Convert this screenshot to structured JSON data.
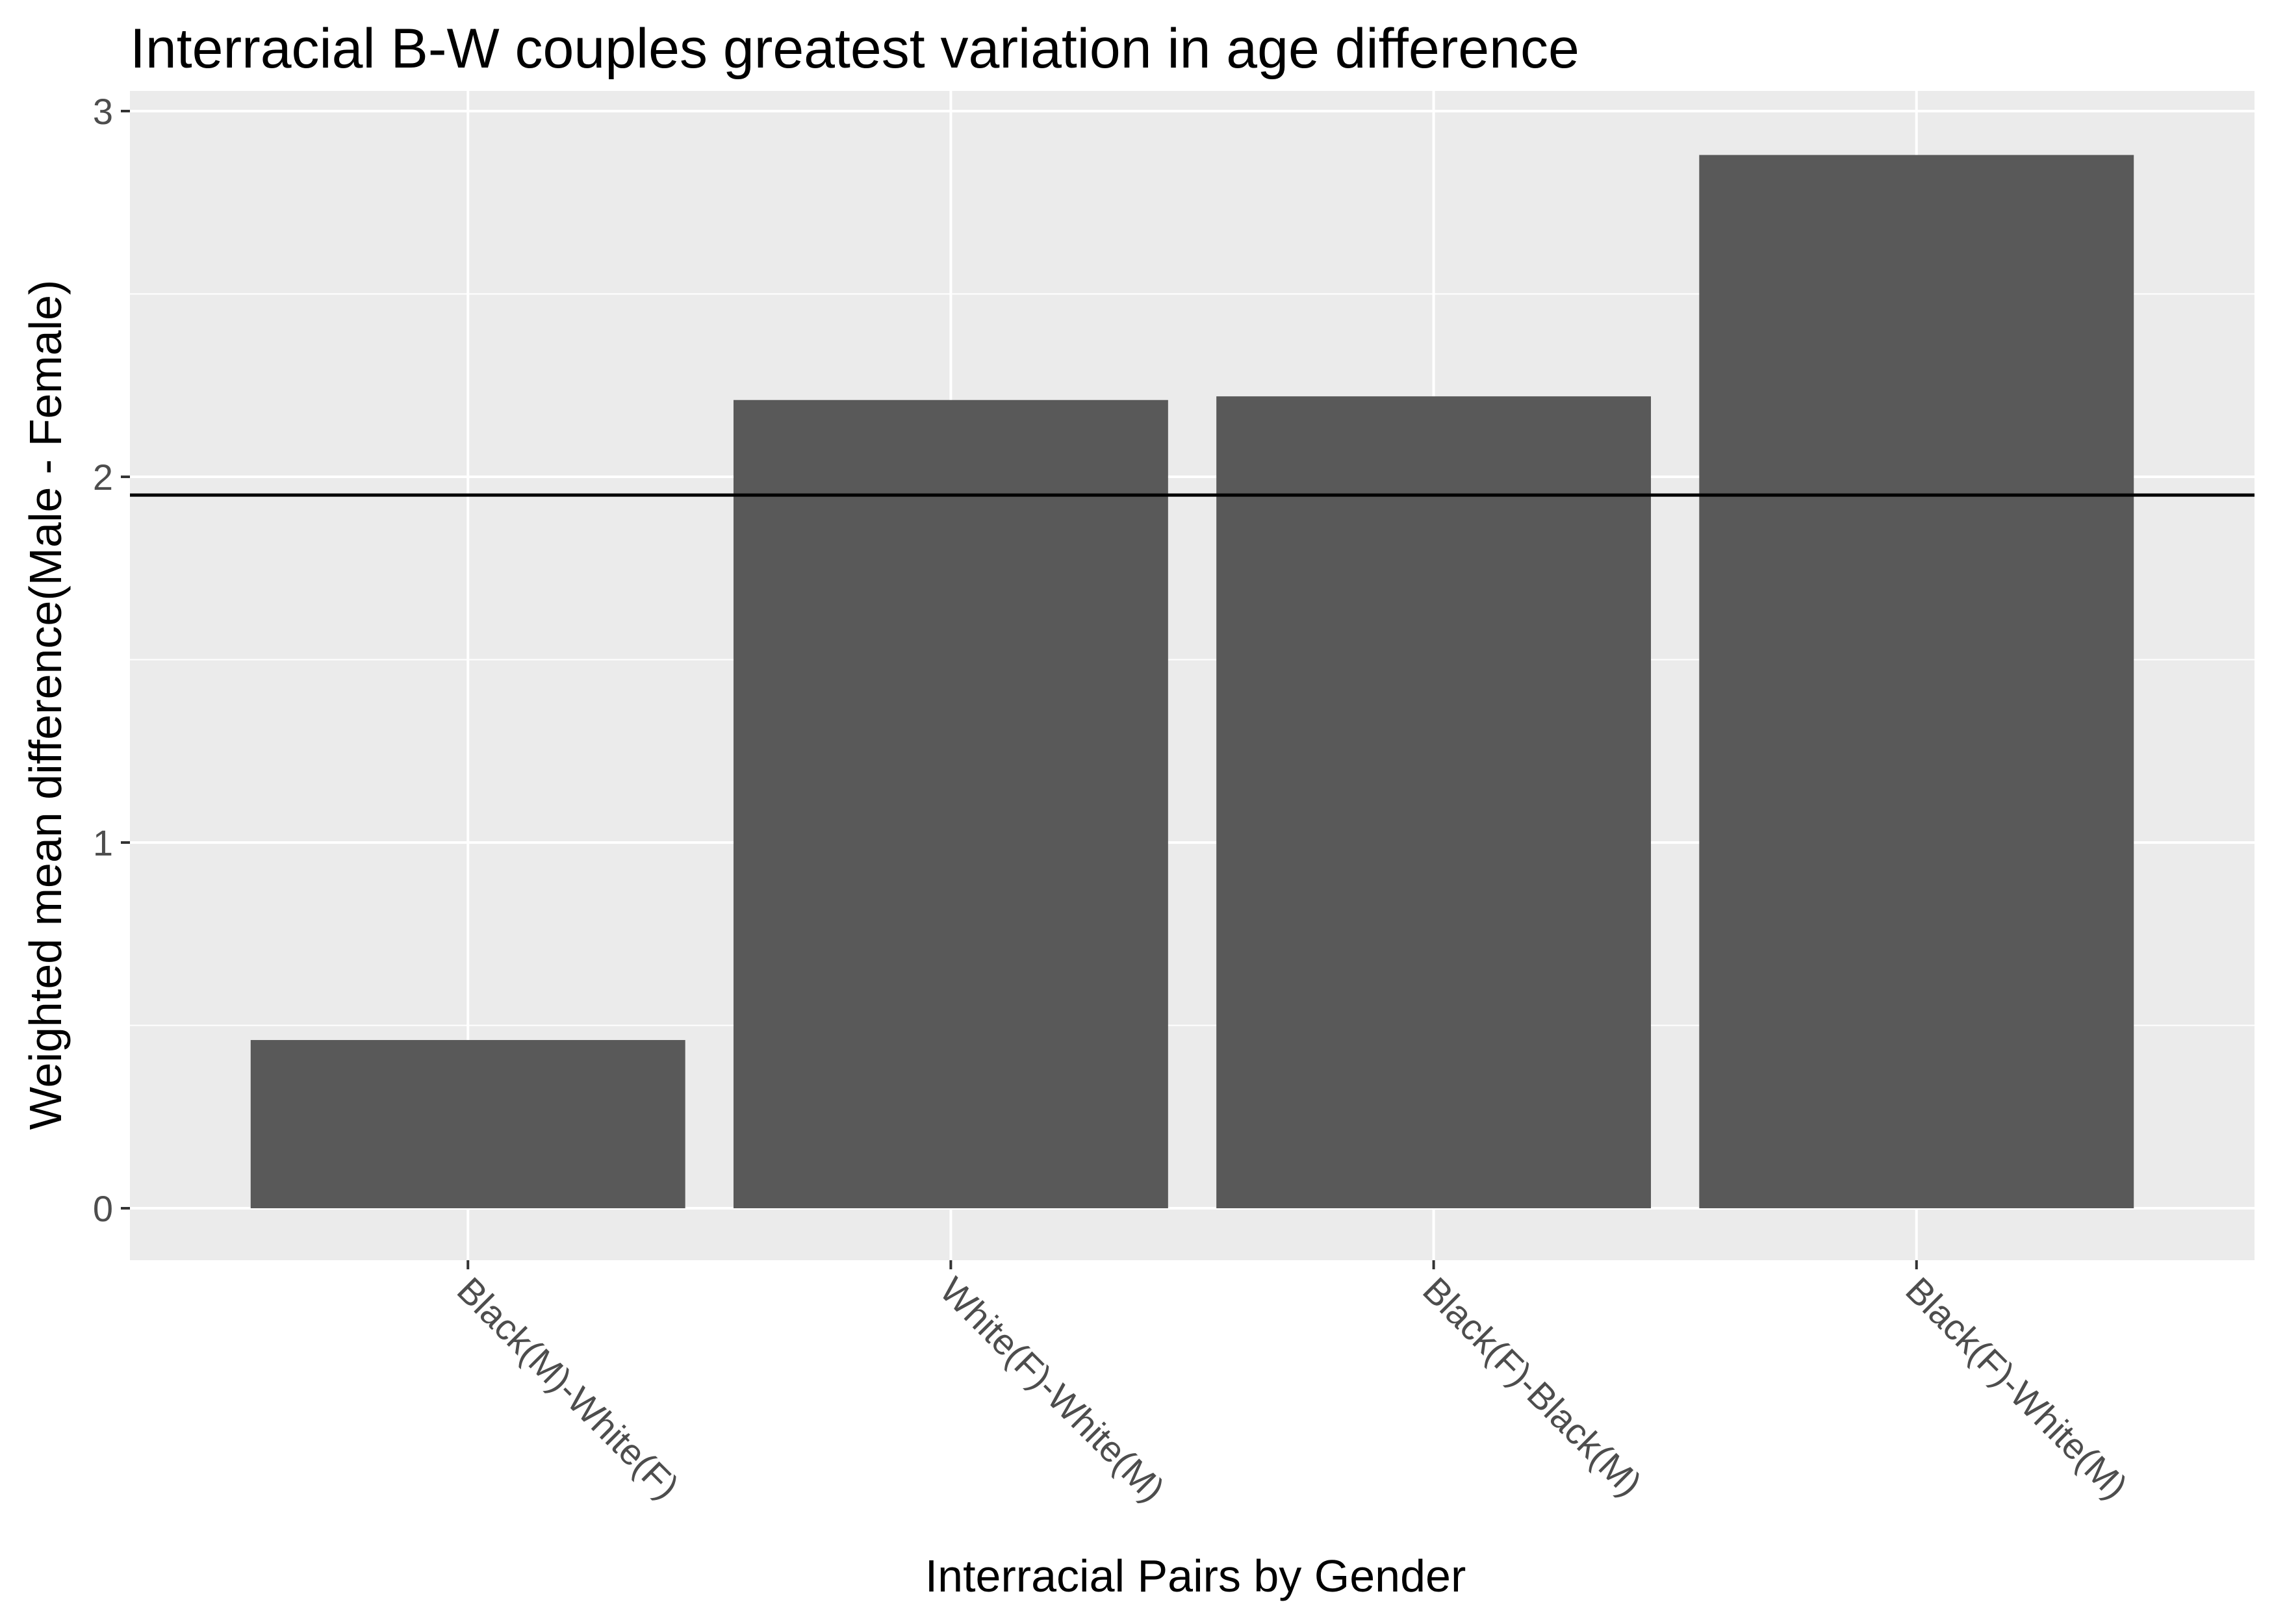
{
  "chart_data": {
    "type": "bar",
    "title": "Interracial B-W couples greatest variation in age difference",
    "xlabel": "Interracial Pairs by Gender",
    "ylabel": "Weighted mean difference(Male - Female)",
    "categories": [
      "Black(M)-White(F)",
      "White(F)-White(M)",
      "Black(F)-Black(M)",
      "Black(F)-White(M)"
    ],
    "values": [
      0.46,
      2.21,
      2.22,
      2.88
    ],
    "reference_line": 1.95,
    "ylim": [
      -0.15,
      3.0
    ],
    "yticks": [
      0,
      1,
      2,
      3
    ],
    "grid": true,
    "legend": "none",
    "colors": {
      "bar": "#595959",
      "panel": "#ebebeb",
      "grid": "#ffffff",
      "reference_line": "#000000",
      "tick": "#333333"
    }
  }
}
